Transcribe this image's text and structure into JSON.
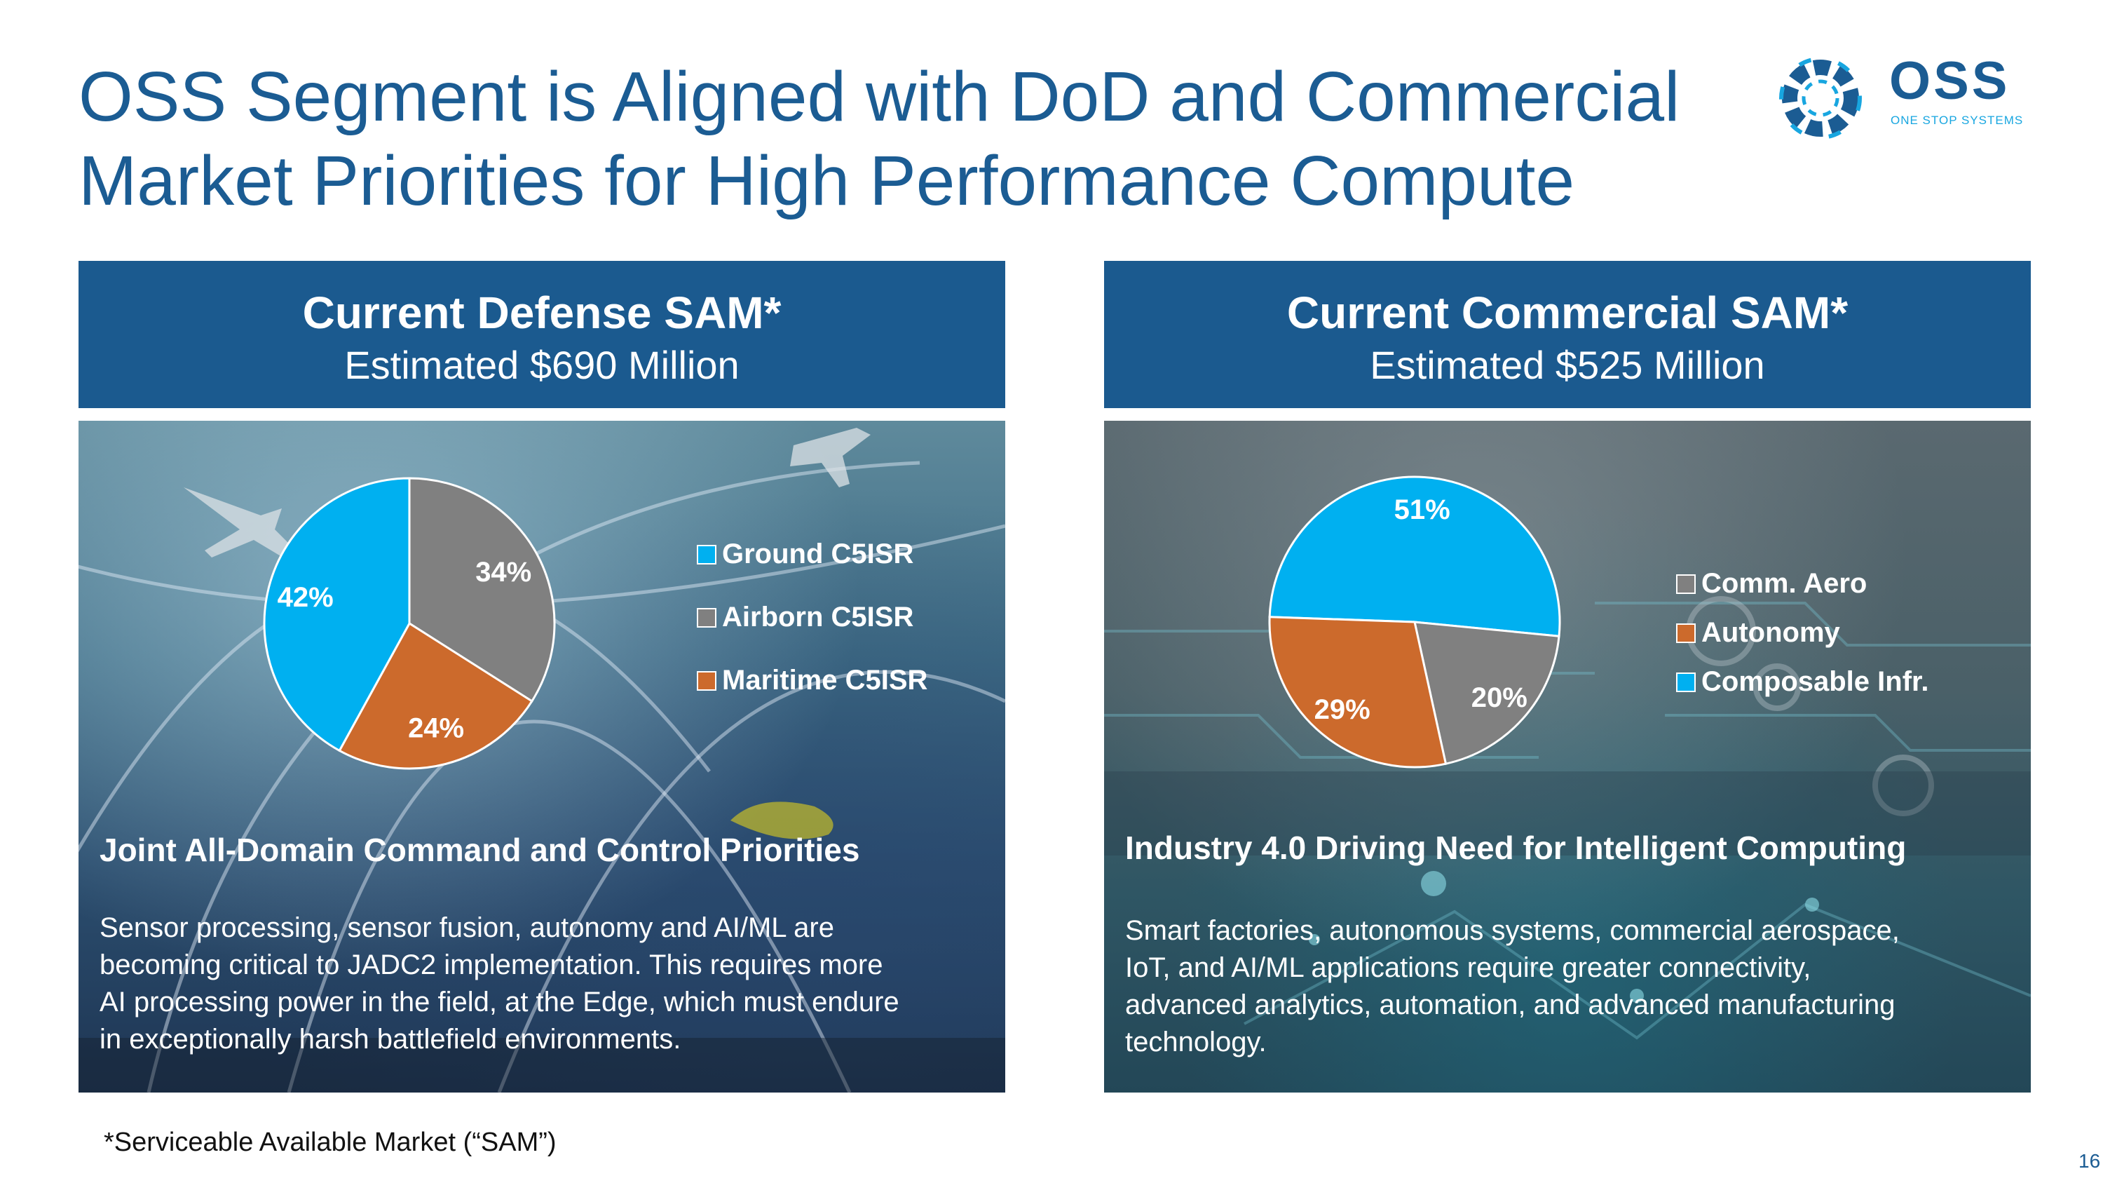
{
  "title": {
    "line1": "OSS Segment is Aligned with DoD and Commercial",
    "line2": "Market Priorities for High Performance Compute"
  },
  "logo": {
    "text": "OSS",
    "subtitle": "ONE STOP SYSTEMS"
  },
  "defense": {
    "header_title": "Current Defense SAM*",
    "header_sub": "Estimated $690 Million",
    "subhead": "Joint All-Domain Command and Control Priorities",
    "body_lines": [
      "Sensor processing, sensor fusion, autonomy and AI/ML are",
      "becoming critical to JADC2 implementation.  This requires more",
      "AI processing power in the field, at the Edge, which must endure",
      "in exceptionally harsh battlefield environments."
    ]
  },
  "commercial": {
    "header_title": "Current Commercial SAM*",
    "header_sub": "Estimated $525 Million",
    "subhead": "Industry 4.0 Driving Need for Intelligent Computing",
    "body_lines": [
      "Smart factories, autonomous systems, commercial aerospace,",
      "IoT, and AI/ML applications require greater connectivity,",
      "advanced analytics, automation, and advanced manufacturing",
      "technology."
    ]
  },
  "footnote": "*Serviceable Available Market (“SAM”)",
  "page_number": "16",
  "colors": {
    "brand_blue": "#1b5c93",
    "header_blue": "#1b5a8f",
    "slice_blue": "#00b0f0",
    "slice_gray": "#808080",
    "slice_orange": "#cc6a2c"
  },
  "chart_data": [
    {
      "type": "pie",
      "title": "Current Defense SAM*",
      "labels": [
        "Ground C5ISR",
        "Airborn C5ISR",
        "Maritime C5ISR"
      ],
      "values": [
        42,
        34,
        24
      ],
      "value_labels": [
        "42%",
        "34%",
        "24%"
      ],
      "colors": [
        "#00b0f0",
        "#808080",
        "#cc6a2c"
      ],
      "slice_order": [
        "Airborn C5ISR",
        "Maritime C5ISR",
        "Ground C5ISR"
      ],
      "legend_position": "right"
    },
    {
      "type": "pie",
      "title": "Current Commercial SAM*",
      "labels": [
        "Comm. Aero",
        "Autonomy",
        "Composable Infr."
      ],
      "values": [
        20,
        29,
        51
      ],
      "value_labels": [
        "20%",
        "29%",
        "51%"
      ],
      "colors": [
        "#808080",
        "#cc6a2c",
        "#00b0f0"
      ],
      "slice_order": [
        "Composable Infr.",
        "Comm. Aero",
        "Autonomy"
      ],
      "legend_position": "right"
    }
  ]
}
